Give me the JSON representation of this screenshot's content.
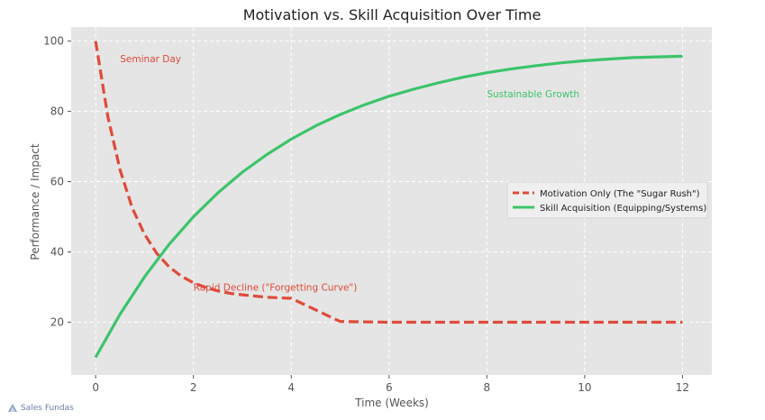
{
  "chart_data": {
    "type": "line",
    "title": "Motivation vs. Skill Acquisition Over Time",
    "xlabel": "Time (Weeks)",
    "ylabel": "Performance / Impact",
    "xlim": [
      -0.5,
      12.6
    ],
    "ylim": [
      5,
      104
    ],
    "xticks": [
      0,
      2,
      4,
      6,
      8,
      10,
      12
    ],
    "yticks": [
      20,
      40,
      60,
      80,
      100
    ],
    "grid": true,
    "legend_position": "center-right",
    "series": [
      {
        "name": "Motivation Only (The \"Sugar Rush\")",
        "color": "#e04a3a",
        "dash": "dashed",
        "x": [
          0,
          0.25,
          0.5,
          0.75,
          1,
          1.25,
          1.5,
          1.75,
          2,
          2.25,
          2.5,
          2.75,
          3,
          3.5,
          4,
          5,
          6,
          7,
          8,
          9,
          10,
          11,
          12
        ],
        "y": [
          100,
          78.5,
          63.3,
          52.5,
          45.0,
          39.6,
          35.8,
          33.1,
          31.2,
          29.9,
          28.9,
          28.2,
          27.8,
          27.1,
          26.8,
          20.2,
          20.0,
          20.0,
          20.0,
          20.0,
          20.0,
          20.0,
          20.0
        ]
      },
      {
        "name": "Skill Acquisition (Equipping/Systems)",
        "color": "#3cc46a",
        "dash": "solid",
        "x": [
          0,
          0.5,
          1,
          1.5,
          2,
          2.5,
          3,
          3.5,
          4,
          4.5,
          5,
          5.5,
          6,
          6.5,
          7,
          7.5,
          8,
          8.5,
          9,
          9.5,
          10,
          10.5,
          11,
          11.5,
          12
        ],
        "y": [
          10,
          22.3,
          32.9,
          42.1,
          50.0,
          56.8,
          62.7,
          67.7,
          72.1,
          75.9,
          79.1,
          81.9,
          84.3,
          86.3,
          88.1,
          89.7,
          91.0,
          92.1,
          93.0,
          93.8,
          94.4,
          94.9,
          95.3,
          95.5,
          95.7
        ]
      }
    ],
    "annotations": [
      {
        "text": "Seminar Day",
        "x": 0.5,
        "y": 95,
        "color": "#e04a3a"
      },
      {
        "text": "Sustainable Growth",
        "x": 8,
        "y": 85,
        "color": "#3cc46a"
      },
      {
        "text": "Rapid Decline (\"Forgetting Curve\")",
        "x": 2,
        "y": 30,
        "color": "#e04a3a"
      }
    ]
  },
  "watermark": "Sales Fundas"
}
